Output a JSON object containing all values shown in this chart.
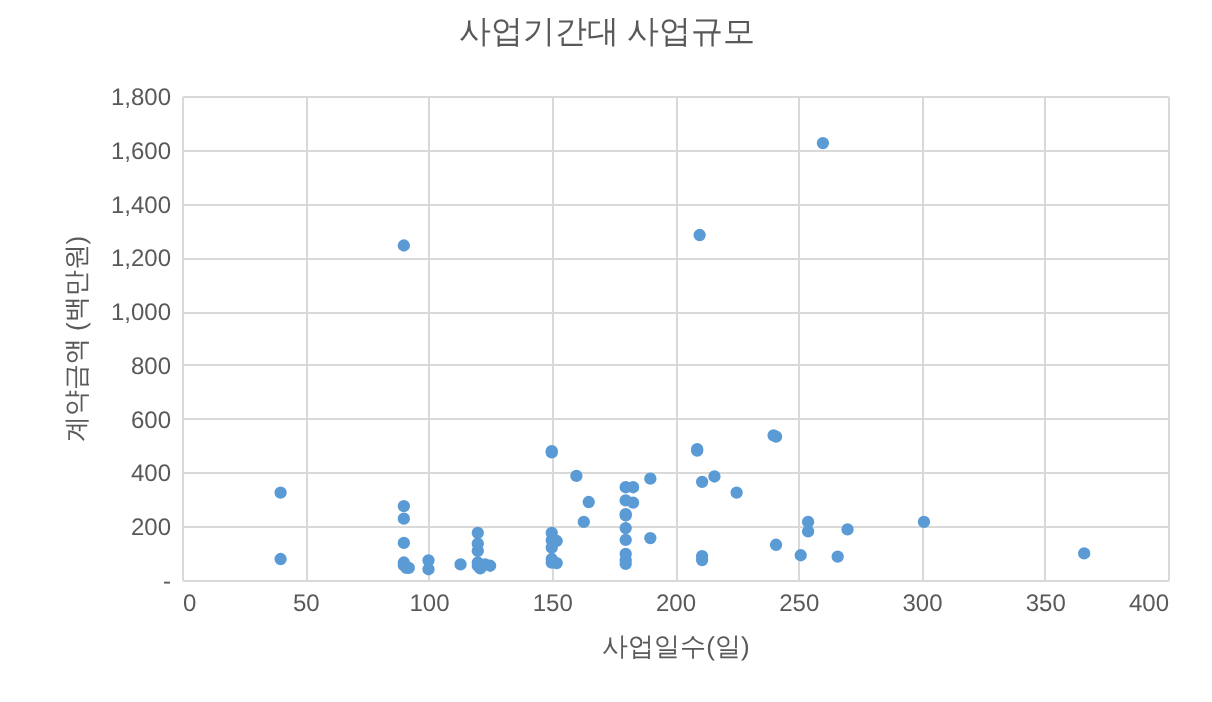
{
  "chart_data": {
    "type": "scatter",
    "title": "사업기간대 사업규모",
    "xlabel": "사업일수(일)",
    "ylabel": "계약금액 (백만원)",
    "xlim": [
      0,
      400
    ],
    "xticks": [
      0,
      50,
      100,
      150,
      200,
      250,
      300,
      350,
      400
    ],
    "ylim": [
      0,
      1800
    ],
    "yticks": [
      {
        "value": 0,
        "label": "-"
      },
      {
        "value": 200,
        "label": "200"
      },
      {
        "value": 400,
        "label": "400"
      },
      {
        "value": 600,
        "label": "600"
      },
      {
        "value": 800,
        "label": "800"
      },
      {
        "value": 1000,
        "label": "1,000"
      },
      {
        "value": 1200,
        "label": "1,200"
      },
      {
        "value": 1400,
        "label": "1,400"
      },
      {
        "value": 1600,
        "label": "1,600"
      },
      {
        "value": 1800,
        "label": "1,800"
      }
    ],
    "grid": true,
    "marker": "circle",
    "series": [
      {
        "color": "#5b9bd5",
        "x": [
          40,
          40,
          90,
          90,
          90,
          90,
          90,
          91,
          92,
          100,
          100,
          113,
          120,
          120,
          120,
          120,
          120,
          121,
          123,
          125,
          150,
          150,
          150,
          150,
          150,
          150,
          152,
          152,
          160,
          163,
          165,
          180,
          180,
          180,
          180,
          180,
          180,
          180,
          180,
          180,
          183,
          183,
          190,
          190,
          209,
          211,
          211,
          211,
          216,
          225,
          241,
          241,
          251,
          254,
          254,
          266,
          270,
          301,
          366,
          90,
          210,
          260,
          150,
          209,
          240
        ],
        "values": [
          325,
          78,
          275,
          228,
          138,
          65,
          55,
          45,
          45,
          73,
          40,
          58,
          175,
          135,
          108,
          53,
          65,
          43,
          58,
          53,
          475,
          175,
          148,
          120,
          78,
          65,
          145,
          63,
          387,
          216,
          290,
          345,
          296,
          245,
          240,
          193,
          149,
          97,
          74,
          60,
          345,
          288,
          377,
          156,
          481,
          365,
          89,
          74,
          385,
          325,
          533,
          131,
          92,
          216,
          181,
          87,
          188,
          216,
          99,
          1244,
          1283,
          1625,
          479,
          487,
          538
        ]
      }
    ]
  }
}
